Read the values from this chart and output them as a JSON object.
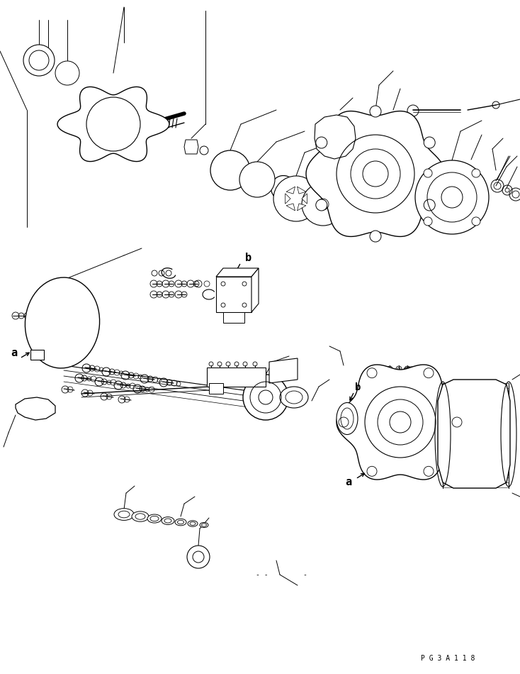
{
  "background_color": "#ffffff",
  "line_color": "#000000",
  "figure_width": 7.34,
  "figure_height": 9.5,
  "dpi": 100,
  "page_code": "PG3A118",
  "label_a": "a",
  "label_b": "b"
}
